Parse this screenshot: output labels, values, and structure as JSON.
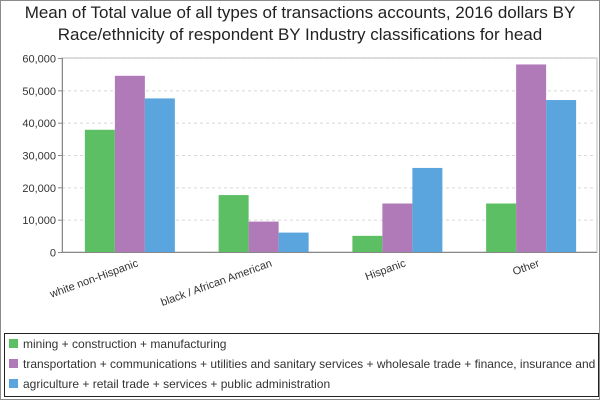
{
  "chart_data": {
    "type": "bar",
    "title_lines": [
      "Mean of Total value of all types of transactions accounts, 2016 dollars BY",
      "Race/ethnicity of respondent BY Industry classifications for head"
    ],
    "categories": [
      "white non-Hispanic",
      "black / African American",
      "Hispanic",
      "Other"
    ],
    "series": [
      {
        "name": "mining + construction + manufacturing",
        "color": "#5cbf63",
        "values": [
          37800,
          17600,
          5000,
          15000
        ]
      },
      {
        "name": "transportation + communications + utilities and sanitary services + wholesale trade + finance, insurance and real estate",
        "color": "#b07ab8",
        "values": [
          54500,
          9400,
          15000,
          58000
        ]
      },
      {
        "name": "agriculture + retail trade + services + public administration",
        "color": "#5aa5de",
        "values": [
          47500,
          6000,
          26000,
          47000
        ]
      }
    ],
    "yticks": [
      0,
      10000,
      20000,
      30000,
      40000,
      50000,
      60000
    ],
    "ytick_labels": [
      "0",
      "10,000",
      "20,000",
      "30,000",
      "40,000",
      "50,000",
      "60,000"
    ],
    "ylim": [
      0,
      60000
    ],
    "grid": true,
    "legend_position": "bottom"
  }
}
